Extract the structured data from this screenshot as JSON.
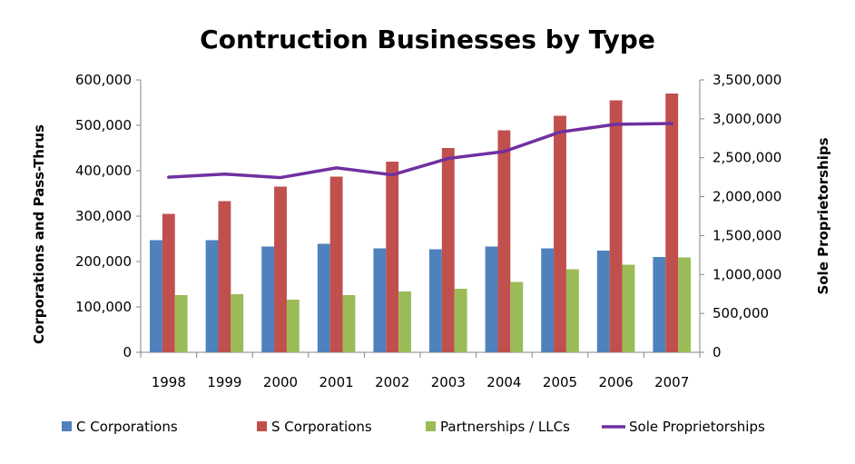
{
  "chart_data": {
    "type": "bar",
    "title": "Contruction Businesses by Type",
    "categories": [
      "1998",
      "1999",
      "2000",
      "2001",
      "2002",
      "2003",
      "2004",
      "2005",
      "2006",
      "2007"
    ],
    "ylabel": "Corporations and Pass-Thrus",
    "ylabel_right": "Sole Proprietorships",
    "ylim": [
      0,
      600000
    ],
    "ylim_right": [
      0,
      3500000
    ],
    "y_ticks": [
      "0",
      "100,000",
      "200,000",
      "300,000",
      "400,000",
      "500,000",
      "600,000"
    ],
    "y_right_ticks": [
      "0",
      "500,000",
      "1,000,000",
      "1,500,000",
      "2,000,000",
      "2,500,000",
      "3,000,000",
      "3,500,000"
    ],
    "grid": false,
    "legend": "bottom",
    "series": [
      {
        "name": "C Corporations",
        "type": "bar",
        "axis": "left",
        "color": "#4F81BD",
        "values": [
          247000,
          247000,
          233000,
          239000,
          229000,
          227000,
          233000,
          229000,
          224000,
          210000
        ]
      },
      {
        "name": "S Corporations",
        "type": "bar",
        "axis": "left",
        "color": "#C0504D",
        "values": [
          305000,
          333000,
          365000,
          387000,
          420000,
          450000,
          489000,
          521000,
          555000,
          570000
        ]
      },
      {
        "name": "Partnerships / LLCs",
        "type": "bar",
        "axis": "left",
        "color": "#9BBB59",
        "values": [
          126000,
          128000,
          116000,
          126000,
          134000,
          140000,
          155000,
          183000,
          193000,
          209000
        ]
      },
      {
        "name": "Sole Proprietorships",
        "type": "line",
        "axis": "right",
        "color": "#7030A0",
        "values": [
          2250000,
          2290000,
          2245000,
          2370000,
          2280000,
          2490000,
          2580000,
          2830000,
          2930000,
          2940000
        ]
      }
    ]
  }
}
